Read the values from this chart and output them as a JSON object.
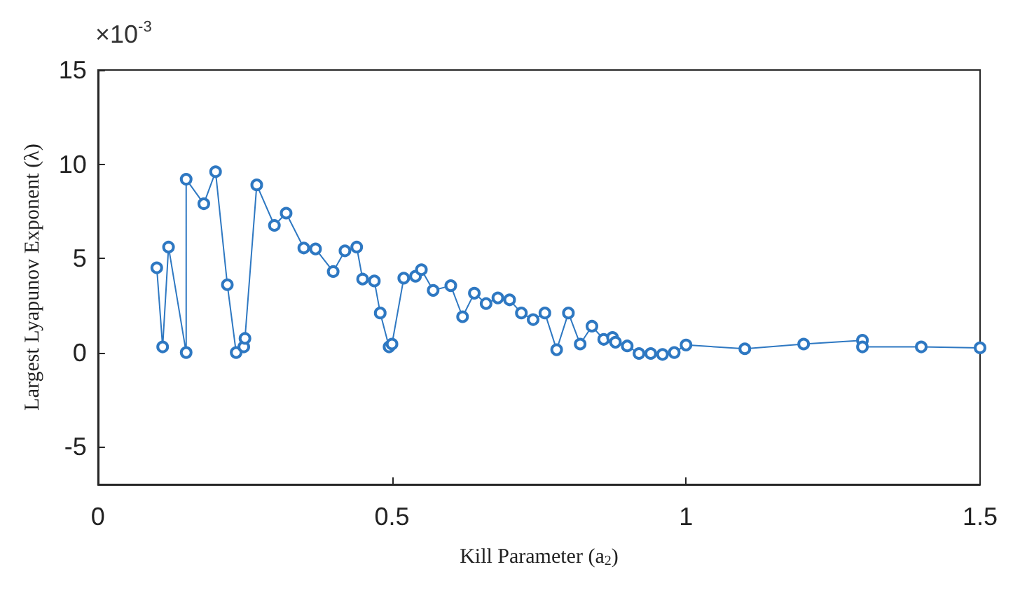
{
  "chart_data": {
    "type": "line",
    "xlabel": "Kill Parameter (a$_{2}$)",
    "ylabel": "Largest Lyapunov Exponent (λ)",
    "annotations": [
      "×10$^{-3}$"
    ],
    "x": [
      0.1,
      0.11,
      0.12,
      0.15,
      0.15,
      0.18,
      0.2,
      0.22,
      0.235,
      0.248,
      0.25,
      0.27,
      0.3,
      0.32,
      0.35,
      0.37,
      0.4,
      0.42,
      0.44,
      0.45,
      0.47,
      0.48,
      0.495,
      0.5,
      0.52,
      0.54,
      0.55,
      0.57,
      0.6,
      0.62,
      0.64,
      0.66,
      0.68,
      0.7,
      0.72,
      0.74,
      0.76,
      0.78,
      0.8,
      0.82,
      0.84,
      0.86,
      0.875,
      0.88,
      0.9,
      0.92,
      0.94,
      0.96,
      0.98,
      1.0,
      1.1,
      1.2,
      1.3,
      1.3,
      1.4,
      1.5
    ],
    "series": [
      {
        "color": "#2e78c2",
        "values": [
          4.5,
          0.3,
          5.6,
          0,
          9.2,
          7.9,
          9.6,
          3.6,
          0,
          0.3,
          0.75,
          8.9,
          6.75,
          7.4,
          5.55,
          5.5,
          4.3,
          5.4,
          5.6,
          3.9,
          3.8,
          2.1,
          0.3,
          0.45,
          3.95,
          4.05,
          4.4,
          3.3,
          3.55,
          1.9,
          3.15,
          2.6,
          2.9,
          2.8,
          2.1,
          1.75,
          2.1,
          0.15,
          2.1,
          0.45,
          1.4,
          0.7,
          0.8,
          0.55,
          0.35,
          -0.05,
          -0.05,
          -0.1,
          0,
          0.4,
          0.2,
          0.45,
          0.65,
          0.3,
          0.3,
          0.25
        ]
      }
    ],
    "xlim": [
      0,
      1.5
    ],
    "xticks": [
      0,
      0.5,
      1,
      1.5
    ],
    "ylim": [
      -7,
      15
    ],
    "yticks": [
      -5,
      0,
      5,
      10,
      15
    ],
    "marker": "circle",
    "line_style": "solid",
    "grid": false
  }
}
